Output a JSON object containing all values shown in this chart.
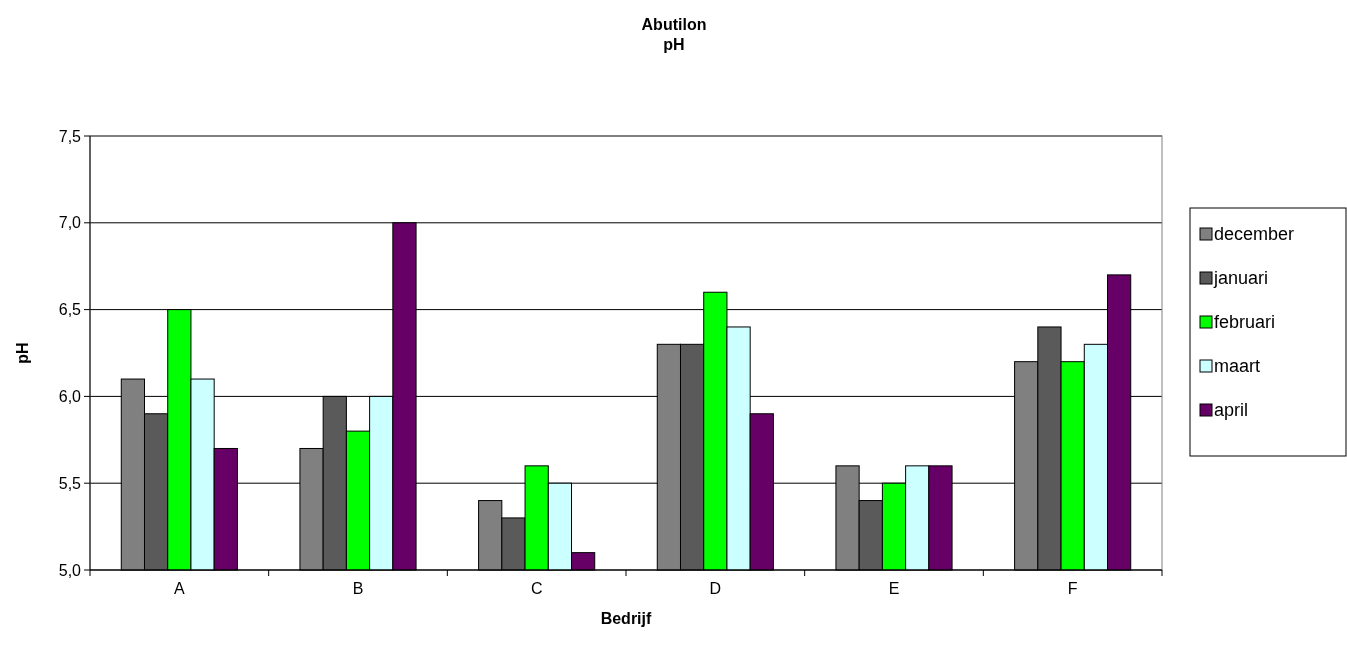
{
  "chart_data": {
    "type": "bar",
    "title": "Abutilon",
    "subtitle": "pH",
    "xlabel": "Bedrijf",
    "ylabel": "pH",
    "categories": [
      "A",
      "B",
      "C",
      "D",
      "E",
      "F"
    ],
    "series": [
      {
        "name": "december",
        "color": "#808080",
        "values": [
          6.1,
          5.7,
          5.4,
          6.3,
          5.6,
          6.2
        ]
      },
      {
        "name": "januari",
        "color": "#5a5a5a",
        "values": [
          5.9,
          6.0,
          5.3,
          6.3,
          5.4,
          6.4
        ]
      },
      {
        "name": "februari",
        "color": "#00ff00",
        "values": [
          6.5,
          5.8,
          5.6,
          6.6,
          5.5,
          6.2
        ]
      },
      {
        "name": "maart",
        "color": "#ccffff",
        "values": [
          6.1,
          6.0,
          5.5,
          6.4,
          5.6,
          6.3
        ]
      },
      {
        "name": "april",
        "color": "#660066",
        "values": [
          5.7,
          7.0,
          5.1,
          5.9,
          5.6,
          6.7
        ]
      }
    ],
    "ylim": [
      5,
      7.5
    ],
    "yticks": [
      {
        "value": 5,
        "label": "5,0"
      },
      {
        "value": 5.5,
        "label": "5,5"
      },
      {
        "value": 6,
        "label": "6,0"
      },
      {
        "value": 6.5,
        "label": "6,5"
      },
      {
        "value": 7,
        "label": "7,0"
      },
      {
        "value": 7.5,
        "label": "7,5"
      }
    ],
    "grid": "y",
    "legend": "right"
  }
}
